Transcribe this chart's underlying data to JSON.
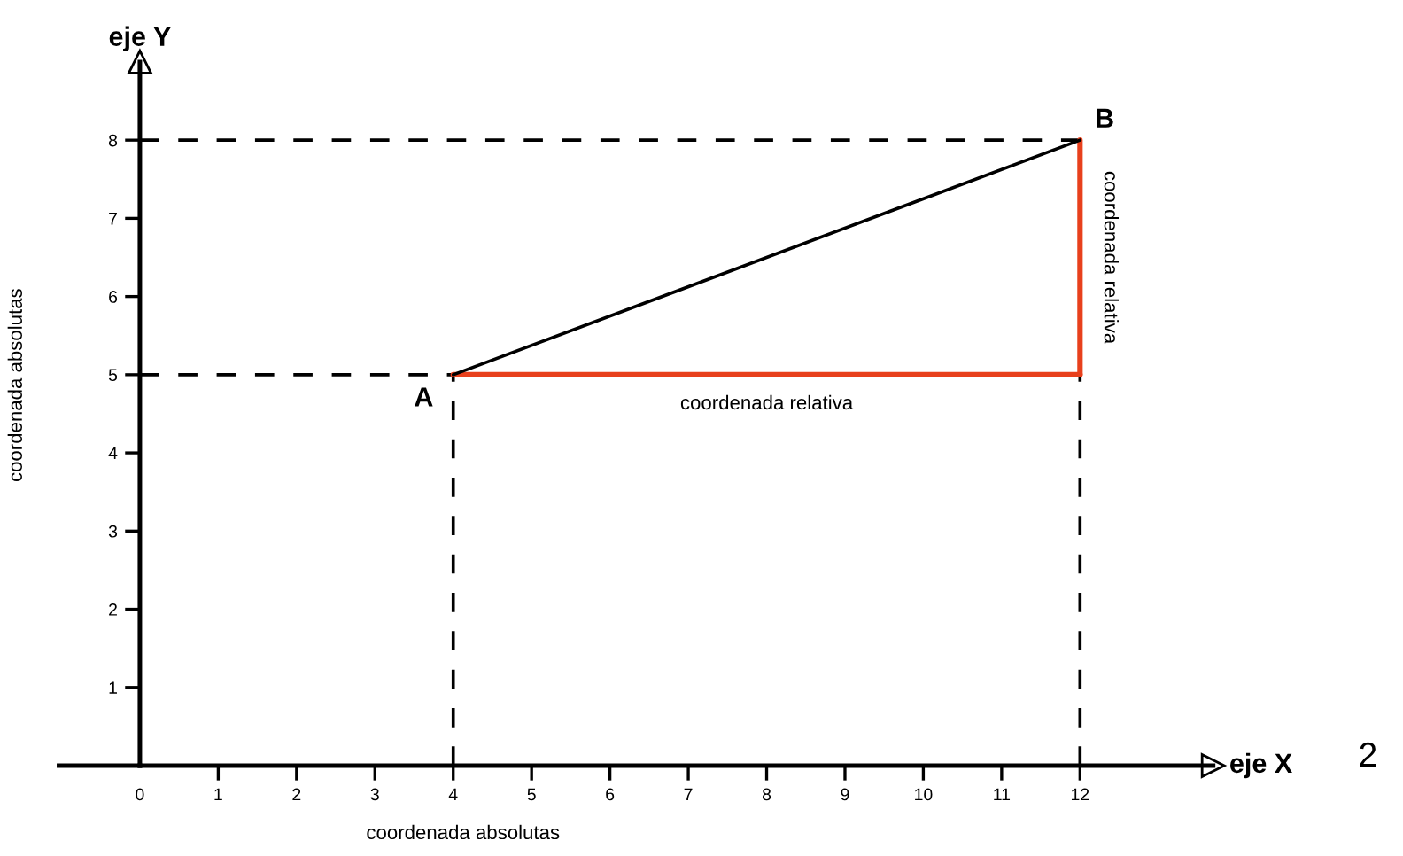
{
  "chart_data": {
    "type": "line",
    "xlabel": "eje X",
    "ylabel": "eje Y",
    "xlim": [
      0,
      13.7
    ],
    "ylim": [
      0,
      9.0
    ],
    "xticks": [
      0,
      1,
      2,
      3,
      4,
      5,
      6,
      7,
      8,
      9,
      10,
      11,
      12
    ],
    "yticks": [
      1,
      2,
      3,
      4,
      5,
      6,
      7,
      8
    ],
    "grid": false,
    "legend": false,
    "marker": "none",
    "series": [
      {
        "color": "#000000",
        "line_style": "dashed",
        "x": [
          0,
          4
        ],
        "values": [
          5,
          5
        ]
      },
      {
        "color": "#000000",
        "line_style": "dashed",
        "x": [
          0,
          12
        ],
        "values": [
          8,
          8
        ]
      },
      {
        "color": "#000000",
        "line_style": "dashed",
        "x": [
          4,
          4
        ],
        "values": [
          0,
          5
        ]
      },
      {
        "color": "#000000",
        "line_style": "dashed",
        "x": [
          12,
          12
        ],
        "values": [
          0,
          5
        ]
      },
      {
        "color": "#e8401c",
        "line_style": "solid",
        "x": [
          4,
          12
        ],
        "values": [
          5,
          5
        ]
      },
      {
        "color": "#e8401c",
        "line_style": "solid",
        "x": [
          12,
          12
        ],
        "values": [
          5,
          8
        ]
      },
      {
        "color": "#000000",
        "line_style": "solid",
        "x": [
          4,
          12
        ],
        "values": [
          5,
          8
        ]
      }
    ],
    "annotations": [
      {
        "text": "A",
        "x": 4,
        "y": 5
      },
      {
        "text": "B",
        "x": 12,
        "y": 8
      },
      {
        "text": "coordenada relativa",
        "x": 8,
        "y": 5
      },
      {
        "text": "coordenada relativa",
        "x": 12,
        "y": 6.5
      },
      "coordenada absolutas",
      "coordenada absolutas",
      "2"
    ]
  }
}
